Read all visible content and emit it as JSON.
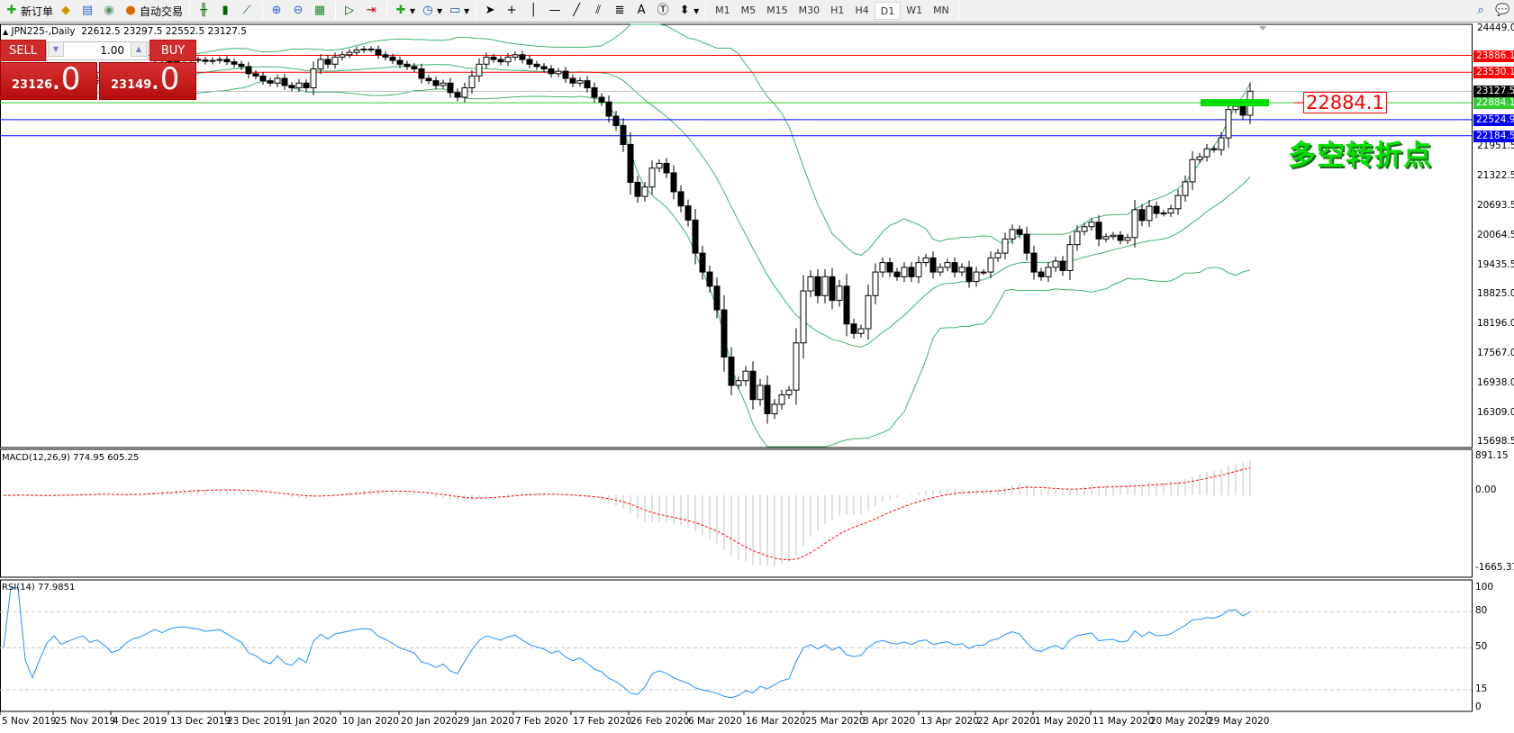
{
  "toolbar": {
    "new_order": "新订单",
    "auto_trading": "自动交易",
    "timeframes": [
      "M1",
      "M5",
      "M15",
      "M30",
      "H1",
      "H4",
      "D1",
      "W1",
      "MN"
    ],
    "active_timeframe": "D1",
    "drawing_text": "A"
  },
  "chart_header": {
    "symbol": "JPN225-,Daily",
    "open": "22612.5",
    "high": "23297.5",
    "low": "22552.5",
    "close": "23127.5"
  },
  "trade_panel": {
    "sell_label": "SELL",
    "buy_label": "BUY",
    "lot": "1.00",
    "sell_price_main": "23126",
    "sell_price_big": ".0",
    "buy_price_main": "23149",
    "buy_price_big": ".0"
  },
  "annotations": {
    "level_label": "22884.1",
    "text": "多空转折点"
  },
  "price_axis": [
    "24449.0",
    "21951.5",
    "21322.5",
    "20693.5",
    "20064.5",
    "19435.5",
    "18825.0",
    "18196.0",
    "17567.0",
    "16938.0",
    "16309.0",
    "15698.5"
  ],
  "level_tags": [
    {
      "value": "23886.1",
      "color": "#ff0000"
    },
    {
      "value": "23530.1",
      "color": "#ff0000"
    },
    {
      "value": "23127.5",
      "color": "#000000"
    },
    {
      "value": "22884.1",
      "color": "#33cc33"
    },
    {
      "value": "22524.9",
      "color": "#0000ff"
    },
    {
      "value": "22184.5",
      "color": "#0000ff"
    }
  ],
  "macd": {
    "label": "MACD(12,26,9) 774.95 605.25",
    "axis": [
      "891.15",
      "0.00",
      "-1665.37"
    ]
  },
  "rsi": {
    "label": "RSI(14) 77.9851",
    "axis": [
      "100",
      "80",
      "50",
      "15",
      "0"
    ]
  },
  "date_axis": [
    "5 Nov 2019",
    "25 Nov 2019",
    "4 Dec 2019",
    "13 Dec 2019",
    "23 Dec 2019",
    "1 Jan 2020",
    "10 Jan 2020",
    "20 Jan 2020",
    "29 Jan 2020",
    "7 Feb 2020",
    "17 Feb 2020",
    "26 Feb 2020",
    "6 Mar 2020",
    "16 Mar 2020",
    "25 Mar 2020",
    "3 Apr 2020",
    "13 Apr 2020",
    "22 Apr 2020",
    "1 May 2020",
    "11 May 2020",
    "20 May 2020",
    "29 May 2020"
  ],
  "chart_data": {
    "type": "candlestick",
    "symbol": "JPN225-",
    "timeframe": "Daily",
    "ylim": [
      15698.5,
      24449.0
    ],
    "indicators": [
      "Bollinger Bands",
      "MACD(12,26,9)",
      "RSI(14)"
    ],
    "horizontal_levels": [
      23886.1,
      23530.1,
      23127.5,
      22884.1,
      22524.9,
      22184.5
    ],
    "close": [
      23250,
      23300,
      23350,
      23200,
      23050,
      23150,
      23300,
      23400,
      23300,
      23350,
      23400,
      23450,
      23350,
      23400,
      23300,
      23150,
      23200,
      23350,
      23450,
      23500,
      23600,
      23700,
      23650,
      23750,
      23800,
      23820,
      23800,
      23790,
      23760,
      23780,
      23800,
      23750,
      23700,
      23650,
      23500,
      23450,
      23350,
      23300,
      23400,
      23250,
      23200,
      23300,
      23200,
      23600,
      23800,
      23700,
      23850,
      23900,
      23950,
      24000,
      24020,
      24010,
      23900,
      23850,
      23780,
      23700,
      23650,
      23600,
      23400,
      23350,
      23250,
      23300,
      23100,
      23000,
      23200,
      23450,
      23700,
      23850,
      23800,
      23750,
      23850,
      23900,
      23800,
      23700,
      23650,
      23600,
      23500,
      23550,
      23400,
      23300,
      23350,
      23200,
      23000,
      22900,
      22600,
      22400,
      22000,
      21200,
      20900,
      21100,
      21500,
      21600,
      21400,
      21000,
      20700,
      20400,
      19700,
      19300,
      19000,
      18500,
      17500,
      16900,
      17000,
      17200,
      16600,
      16900,
      16300,
      16500,
      16700,
      16800,
      17800,
      18900,
      19200,
      18800,
      19200,
      18700,
      19000,
      18200,
      18000,
      18100,
      18800,
      19300,
      19500,
      19300,
      19200,
      19400,
      19200,
      19500,
      19600,
      19300,
      19400,
      19500,
      19300,
      19400,
      19100,
      19300,
      19300,
      19600,
      19700,
      20000,
      20200,
      20100,
      19700,
      19300,
      19200,
      19400,
      19530,
      19330,
      19880,
      20160,
      20260,
      20355,
      20000,
      20050,
      20080,
      19970,
      20030,
      20620,
      20390,
      20690,
      20540,
      20550,
      20640,
      20920,
      21210,
      21680,
      21740,
      21910,
      21890,
      22140,
      22740,
      22810,
      22620,
      23127.5
    ]
  }
}
